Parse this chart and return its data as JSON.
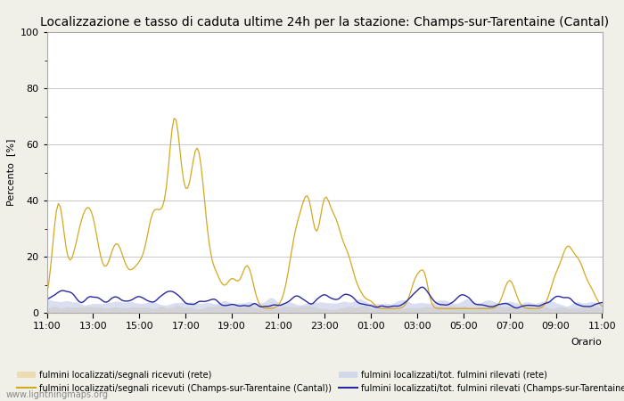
{
  "title": "Localizzazione e tasso di caduta ultime 24h per la stazione: Champs-sur-Tarentaine (Cantal)",
  "ylabel": "Percento  [%]",
  "ylim": [
    0,
    100
  ],
  "yticks_major": [
    0,
    20,
    40,
    60,
    80,
    100
  ],
  "yticks_minor": [
    10,
    30,
    50,
    70,
    90
  ],
  "xtick_labels": [
    "11:00",
    "13:00",
    "15:00",
    "17:00",
    "19:00",
    "21:00",
    "23:00",
    "01:00",
    "03:00",
    "05:00",
    "07:00",
    "09:00",
    "11:00"
  ],
  "watermark": "www.lightningmaps.org",
  "background_color": "#f0f0e8",
  "plot_bg_color": "#ffffff",
  "grid_color": "#c8c8c8",
  "title_fontsize": 10,
  "label_fontsize": 8,
  "tick_fontsize": 8,
  "n_points": 289,
  "x_range": [
    0,
    288
  ],
  "fill_gold_color": "#e8d090",
  "fill_gold_alpha": 0.6,
  "fill_blue_color": "#c0c8e8",
  "fill_blue_alpha": 0.6,
  "line_gold_color": "#d4a820",
  "line_blue_color": "#2828a0",
  "legend_labels": [
    "fulmini localizzati/segnali ricevuti (rete)",
    "fulmini localizzati/segnali ricevuti (Champs-sur-Tarentaine (Cantal))",
    "fulmini localizzati/tot. fulmini rilevati (rete)",
    "fulmini localizzati/tot. fulmini rilevati (Champs-sur-Tarentaine (Cantal))"
  ]
}
